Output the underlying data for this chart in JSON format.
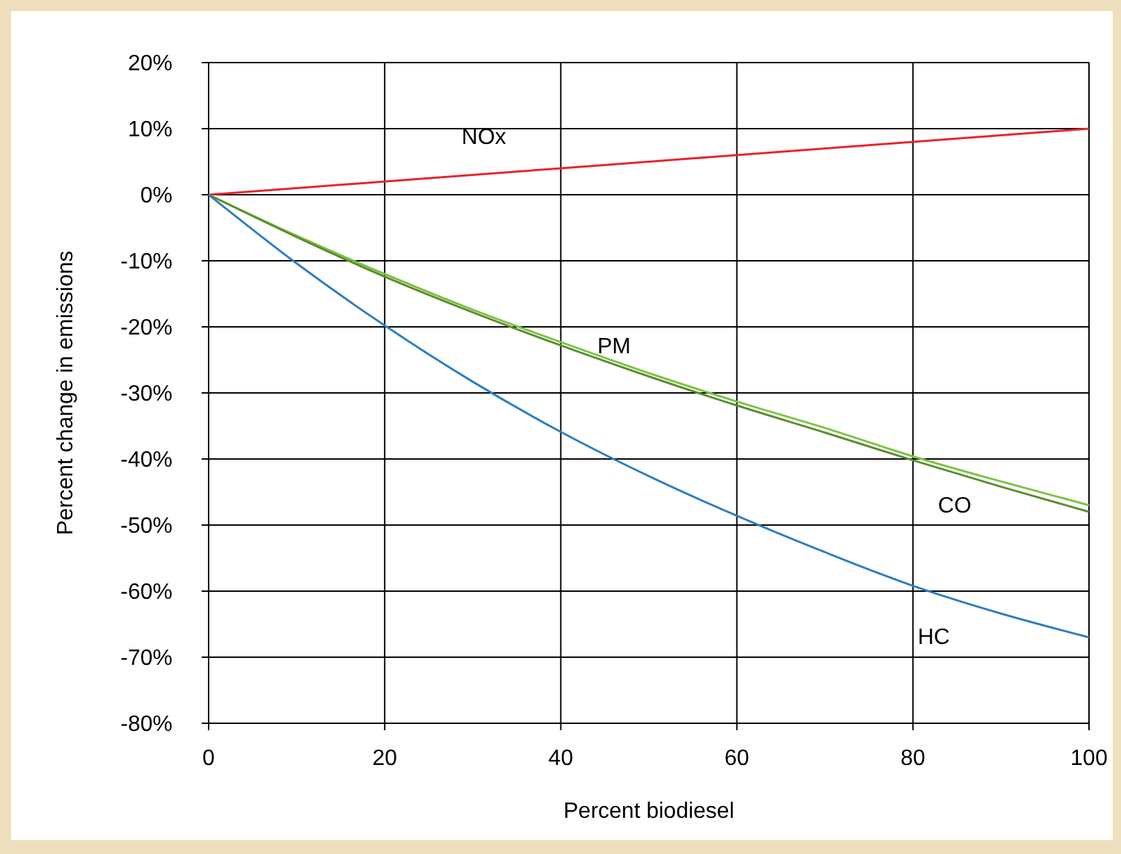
{
  "chart_data": {
    "type": "line",
    "xlabel": "Percent biodiesel",
    "ylabel": "Percent change in emissions",
    "x": [
      0,
      10,
      20,
      30,
      40,
      50,
      60,
      70,
      80,
      90,
      100
    ],
    "series": [
      {
        "name": "NOx",
        "color": "#e8232b",
        "values": [
          0,
          1,
          2,
          3,
          4,
          5,
          6,
          7,
          8,
          9,
          10
        ]
      },
      {
        "name": "PM",
        "color": "#7dc242",
        "values": [
          0,
          -6.2,
          -12,
          -17.4,
          -22.3,
          -27,
          -31.3,
          -35.3,
          -39.6,
          -43.4,
          -47
        ]
      },
      {
        "name": "CO",
        "color": "#5b8c2e",
        "values": [
          0,
          -6.4,
          -12.4,
          -17.8,
          -22.8,
          -27.5,
          -31.9,
          -36,
          -40.2,
          -44.2,
          -48
        ]
      },
      {
        "name": "HC",
        "color": "#2a7dc4",
        "values": [
          0,
          -10.4,
          -19.8,
          -28.3,
          -35.9,
          -42.6,
          -48.6,
          -54.1,
          -59.2,
          -63.4,
          -67
        ]
      }
    ],
    "xlim": [
      0,
      100
    ],
    "xticks": [
      0,
      20,
      40,
      60,
      80,
      100
    ],
    "ylim": [
      -80,
      20
    ],
    "yticks": [
      {
        "value": -80,
        "label": "-80%"
      },
      {
        "value": -70,
        "label": "-70%"
      },
      {
        "value": -60,
        "label": "-60%"
      },
      {
        "value": -50,
        "label": "-50%"
      },
      {
        "value": -40,
        "label": "-40%"
      },
      {
        "value": -30,
        "label": "-30%"
      },
      {
        "value": -20,
        "label": "-20%"
      },
      {
        "value": -10,
        "label": "-10%"
      },
      {
        "value": 0,
        "label": "0%"
      },
      {
        "value": 10,
        "label": "10%"
      },
      {
        "value": 20,
        "label": "20%"
      }
    ],
    "grid": true
  }
}
